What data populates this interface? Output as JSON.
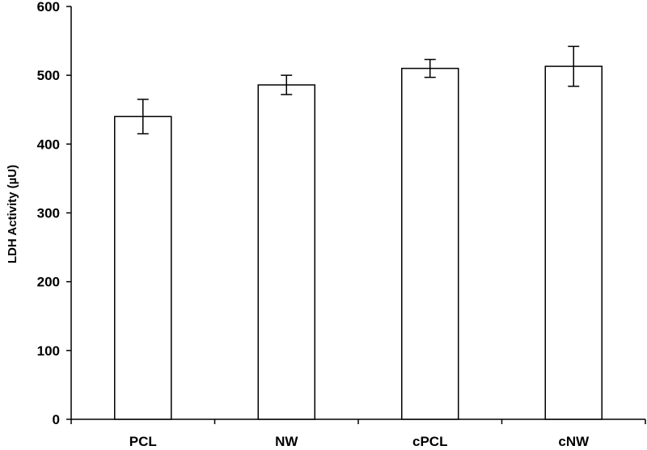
{
  "chart_data": {
    "type": "bar",
    "title": "",
    "xlabel": "",
    "ylabel": "LDH Activity (µU)",
    "categories": [
      "PCL",
      "NW",
      "cPCL",
      "cNW"
    ],
    "values": [
      440,
      486,
      510,
      513
    ],
    "error": [
      25,
      14,
      13,
      29
    ],
    "ylim": [
      0,
      600
    ],
    "yticks": [
      0,
      100,
      200,
      300,
      400,
      500,
      600
    ],
    "grid": false,
    "legend": "none",
    "colors": {
      "bar_fill": "#ffffff",
      "bar_stroke": "#000000",
      "axis": "#000000"
    }
  }
}
